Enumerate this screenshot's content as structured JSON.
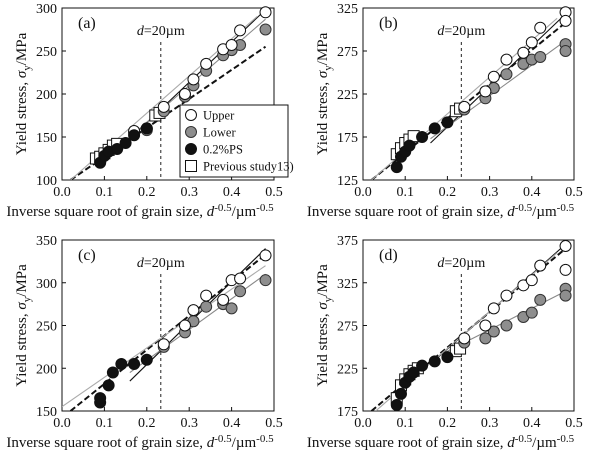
{
  "chart_data": [
    {
      "type": "scatter",
      "panel": "(a)",
      "xlabel": "Inverse square root of grain size, d^-0.5/µm^-0.5",
      "ylabel": "Yield stress, σy/MPa",
      "xlim": [
        0,
        0.5
      ],
      "ylim": [
        100,
        300
      ],
      "x_ticks": [
        "0.0",
        "0.1",
        "0.2",
        "0.3",
        "0.4",
        "0.5"
      ],
      "y_ticks": [
        "100",
        "150",
        "200",
        "250",
        "300"
      ],
      "vline": {
        "x": 0.233,
        "label": "d=20µm"
      },
      "legend": {
        "placement": "bottom-right",
        "entries": [
          "Upper",
          "Lower",
          "0.2%PS",
          "Previous study13)"
        ]
      },
      "series": [
        {
          "name": "Upper",
          "marker": "open-circle",
          "points": [
            [
              0.17,
              157
            ],
            [
              0.2,
              160
            ],
            [
              0.24,
              185
            ],
            [
              0.29,
              200
            ],
            [
              0.31,
              217
            ],
            [
              0.34,
              235
            ],
            [
              0.38,
              252
            ],
            [
              0.4,
              257
            ],
            [
              0.42,
              274
            ],
            [
              0.48,
              295
            ]
          ],
          "fit": [
            [
              0.16,
              148
            ],
            [
              0.48,
              298
            ]
          ]
        },
        {
          "name": "Lower",
          "marker": "gray-circle",
          "points": [
            [
              0.17,
              155
            ],
            [
              0.2,
              158
            ],
            [
              0.24,
              180
            ],
            [
              0.29,
              197
            ],
            [
              0.31,
              210
            ],
            [
              0.34,
              227
            ],
            [
              0.38,
              245
            ],
            [
              0.4,
              251
            ],
            [
              0.42,
              257
            ],
            [
              0.48,
              275
            ]
          ],
          "fit": [
            [
              0.16,
              150
            ],
            [
              0.48,
              287
            ]
          ]
        },
        {
          "name": "0.2%PS",
          "marker": "black-circle",
          "points": [
            [
              0.09,
              120
            ],
            [
              0.1,
              128
            ],
            [
              0.11,
              133
            ],
            [
              0.13,
              136
            ],
            [
              0.15,
              143
            ],
            [
              0.17,
              152
            ],
            [
              0.2,
              160
            ]
          ],
          "fit": [
            [
              0.02,
              100
            ],
            [
              0.48,
              255
            ]
          ]
        },
        {
          "name": "Previous study13)",
          "marker": "open-square",
          "points": [
            [
              0.08,
              125
            ],
            [
              0.09,
              127
            ],
            [
              0.1,
              131
            ],
            [
              0.11,
              135
            ],
            [
              0.12,
              140
            ],
            [
              0.13,
              142
            ],
            [
              0.22,
              175
            ],
            [
              0.23,
              178
            ]
          ],
          "fit": [
            [
              0.02,
              100
            ],
            [
              0.46,
              290
            ]
          ]
        }
      ]
    },
    {
      "type": "scatter",
      "panel": "(b)",
      "xlabel": "Inverse square root of grain size, d^-0.5/µm^-0.5",
      "ylabel": "Yield stress, σy/MPa",
      "xlim": [
        0,
        0.5
      ],
      "ylim": [
        125,
        325
      ],
      "x_ticks": [
        "0.0",
        "0.1",
        "0.2",
        "0.3",
        "0.4",
        "0.5"
      ],
      "y_ticks": [
        "125",
        "175",
        "225",
        "275",
        "325"
      ],
      "vline": {
        "x": 0.233,
        "label": "d=20µm"
      },
      "series": [
        {
          "name": "Upper",
          "marker": "open-circle",
          "points": [
            [
              0.24,
              210
            ],
            [
              0.29,
              228
            ],
            [
              0.31,
              245
            ],
            [
              0.34,
              265
            ],
            [
              0.38,
              273
            ],
            [
              0.4,
              285
            ],
            [
              0.42,
              302
            ],
            [
              0.48,
              320
            ],
            [
              0.48,
              310
            ]
          ],
          "fit": [
            [
              0.16,
              168
            ],
            [
              0.48,
              318
            ]
          ]
        },
        {
          "name": "Lower",
          "marker": "gray-circle",
          "points": [
            [
              0.24,
              207
            ],
            [
              0.29,
              220
            ],
            [
              0.31,
              232
            ],
            [
              0.34,
              248
            ],
            [
              0.38,
              260
            ],
            [
              0.4,
              265
            ],
            [
              0.42,
              268
            ],
            [
              0.48,
              283
            ],
            [
              0.48,
              275
            ]
          ],
          "fit": [
            [
              0.16,
              173
            ],
            [
              0.48,
              287
            ]
          ]
        },
        {
          "name": "0.2%PS",
          "marker": "black-circle",
          "points": [
            [
              0.08,
              140
            ],
            [
              0.09,
              152
            ],
            [
              0.1,
              158
            ],
            [
              0.11,
              165
            ],
            [
              0.14,
              175
            ],
            [
              0.17,
              185
            ],
            [
              0.2,
              192
            ]
          ],
          "fit": [
            [
              0.02,
              125
            ],
            [
              0.48,
              308
            ]
          ]
        },
        {
          "name": "Previous study13)",
          "marker": "open-square",
          "points": [
            [
              0.08,
              155
            ],
            [
              0.09,
              162
            ],
            [
              0.1,
              168
            ],
            [
              0.11,
              172
            ],
            [
              0.12,
              176
            ],
            [
              0.22,
              205
            ],
            [
              0.23,
              208
            ]
          ],
          "fit": [
            [
              0.02,
              125
            ],
            [
              0.46,
              313
            ]
          ]
        }
      ]
    },
    {
      "type": "scatter",
      "panel": "(c)",
      "xlabel": "Inverse square root of grain size, d^-0.5/µm^-0.5",
      "ylabel": "Yield stress, σy/MPa",
      "xlim": [
        0,
        0.5
      ],
      "ylim": [
        150,
        350
      ],
      "x_ticks": [
        "0.0",
        "0.1",
        "0.2",
        "0.3",
        "0.4",
        "0.5"
      ],
      "y_ticks": [
        "150",
        "200",
        "250",
        "300",
        "350"
      ],
      "vline": {
        "x": 0.233,
        "label": "d=20µm"
      },
      "series": [
        {
          "name": "Upper",
          "marker": "open-circle",
          "points": [
            [
              0.24,
              228
            ],
            [
              0.29,
              250
            ],
            [
              0.31,
              268
            ],
            [
              0.34,
              285
            ],
            [
              0.38,
              280
            ],
            [
              0.4,
              303
            ],
            [
              0.42,
              305
            ],
            [
              0.48,
              332
            ]
          ],
          "fit": [
            [
              0.16,
              185
            ],
            [
              0.48,
              340
            ]
          ]
        },
        {
          "name": "Lower",
          "marker": "gray-circle",
          "points": [
            [
              0.24,
              225
            ],
            [
              0.29,
              242
            ],
            [
              0.31,
              255
            ],
            [
              0.34,
              272
            ],
            [
              0.38,
              275
            ],
            [
              0.4,
              270
            ],
            [
              0.42,
              290
            ],
            [
              0.48,
              303
            ]
          ],
          "fit": [
            [
              0.16,
              195
            ],
            [
              0.48,
              310
            ]
          ]
        },
        {
          "name": "0.2%PS",
          "marker": "black-circle",
          "points": [
            [
              0.09,
              160
            ],
            [
              0.09,
              165
            ],
            [
              0.11,
              180
            ],
            [
              0.12,
              195
            ],
            [
              0.14,
              205
            ],
            [
              0.17,
              205
            ],
            [
              0.2,
              210
            ]
          ],
          "fit": [
            [
              0.02,
              150
            ],
            [
              0.48,
              333
            ]
          ]
        },
        {
          "name": "Previous study13)",
          "marker": "open-square",
          "points": [],
          "fit": [
            [
              0.0,
              155
            ],
            [
              0.48,
              320
            ]
          ]
        }
      ]
    },
    {
      "type": "scatter",
      "panel": "(d)",
      "xlabel": "Inverse square root of grain size, d^-0.5/µm^-0.5",
      "ylabel": "Yield stress, σy/MPa",
      "xlim": [
        0,
        0.5
      ],
      "ylim": [
        175,
        375
      ],
      "x_ticks": [
        "0.0",
        "0.1",
        "0.2",
        "0.3",
        "0.4",
        "0.5"
      ],
      "y_ticks": [
        "175",
        "225",
        "275",
        "325",
        "375"
      ],
      "vline": {
        "x": 0.233,
        "label": "d=20µm"
      },
      "series": [
        {
          "name": "Upper",
          "marker": "open-circle",
          "points": [
            [
              0.24,
              260
            ],
            [
              0.29,
              275
            ],
            [
              0.31,
              295
            ],
            [
              0.34,
              310
            ],
            [
              0.38,
              322
            ],
            [
              0.4,
              328
            ],
            [
              0.42,
              345
            ],
            [
              0.48,
              368
            ],
            [
              0.48,
              340
            ]
          ],
          "fit": [
            [
              0.16,
              230
            ],
            [
              0.48,
              370
            ]
          ]
        },
        {
          "name": "Lower",
          "marker": "gray-circle",
          "points": [
            [
              0.24,
              255
            ],
            [
              0.29,
              260
            ],
            [
              0.31,
              268
            ],
            [
              0.34,
              275
            ],
            [
              0.38,
              285
            ],
            [
              0.4,
              290
            ],
            [
              0.42,
              305
            ],
            [
              0.48,
              318
            ],
            [
              0.48,
              310
            ]
          ],
          "fit": [
            [
              0.16,
              235
            ],
            [
              0.48,
              315
            ]
          ]
        },
        {
          "name": "0.2%PS",
          "marker": "black-circle",
          "points": [
            [
              0.08,
              182
            ],
            [
              0.09,
              195
            ],
            [
              0.1,
              208
            ],
            [
              0.11,
              215
            ],
            [
              0.12,
              220
            ],
            [
              0.14,
              228
            ],
            [
              0.17,
              233
            ],
            [
              0.2,
              238
            ]
          ],
          "fit": [
            [
              0.02,
              175
            ],
            [
              0.48,
              365
            ]
          ]
        },
        {
          "name": "Previous study13)",
          "marker": "open-square",
          "points": [
            [
              0.08,
              190
            ],
            [
              0.09,
              205
            ],
            [
              0.1,
              212
            ],
            [
              0.11,
              218
            ],
            [
              0.12,
              222
            ],
            [
              0.13,
              225
            ],
            [
              0.22,
              245
            ],
            [
              0.23,
              248
            ]
          ],
          "fit": [
            [
              0.03,
              175
            ],
            [
              0.46,
              360
            ]
          ]
        }
      ]
    }
  ]
}
